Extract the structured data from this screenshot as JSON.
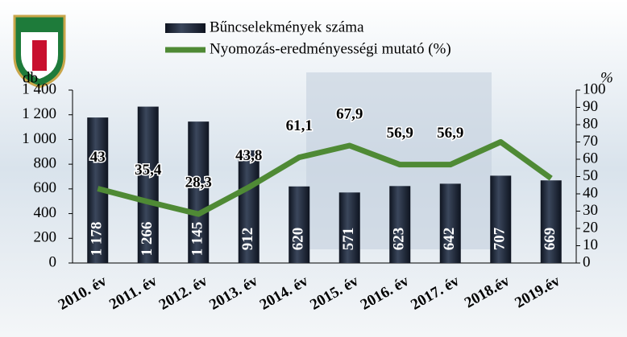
{
  "chart_data": {
    "type": "combo",
    "categories": [
      "2010. év",
      "2011. év",
      "2012. év",
      "2013. év",
      "2014. év",
      "2015. év",
      "2016. év",
      "2017. év",
      "2018.év",
      "2019.év"
    ],
    "series": [
      {
        "name": "Bűncselekmények száma",
        "type": "bar",
        "color": "#1d2535",
        "values": [
          1178,
          1266,
          1145,
          912,
          620,
          571,
          623,
          642,
          707,
          669
        ],
        "value_labels": [
          "1 178",
          "1 266",
          "1 145",
          "912",
          "620",
          "571",
          "623",
          "642",
          "707",
          "669"
        ]
      },
      {
        "name": "Nyomozás-eredményességi mutató (%)",
        "type": "line",
        "axis": "y2",
        "color": "#4f8a35",
        "values": [
          43,
          35.4,
          28.3,
          43.8,
          61.1,
          67.9,
          56.9,
          56.9,
          70,
          49
        ],
        "value_labels": [
          "43",
          "35,4",
          "28,3",
          "43,8",
          "61,1",
          "67,9",
          "56,9",
          "56,9",
          null,
          null
        ]
      }
    ],
    "ylabel": "db",
    "y2label": "%",
    "ylim": [
      0,
      1400
    ],
    "yticks": [
      0,
      200,
      400,
      600,
      800,
      {
        "value": 1000,
        "label": "1 000"
      },
      {
        "value": 1200,
        "label": "1 200"
      },
      {
        "value": 1400,
        "label": "1 400"
      }
    ],
    "y2lim": [
      0,
      100
    ],
    "y2ticks": [
      0,
      10,
      20,
      30,
      40,
      50,
      60,
      70,
      80,
      90,
      100
    ]
  }
}
